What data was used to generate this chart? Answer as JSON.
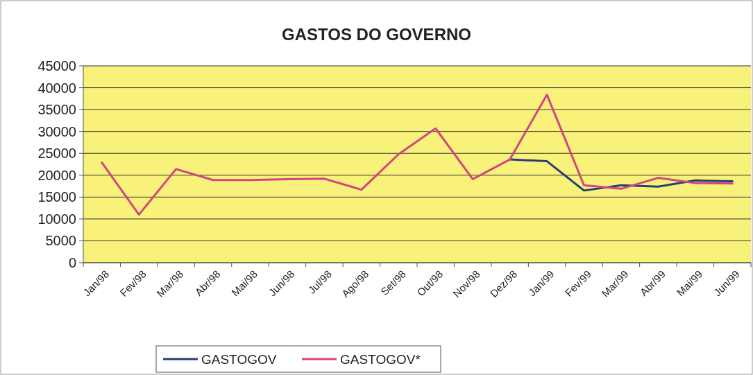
{
  "chart_data": {
    "type": "line",
    "title": "GASTOS DO GOVERNO",
    "categories": [
      "Jan/98",
      "Fev/98",
      "Mar/98",
      "Abr/98",
      "Mai/98",
      "Jun/98",
      "Jul/98",
      "Ago/98",
      "Set/98",
      "Out/98",
      "Nov/98",
      "Dez/98",
      "Jan/99",
      "Fev/99",
      "Mar/99",
      "Abr/99",
      "Mai/99",
      "Jun/99"
    ],
    "series": [
      {
        "name": "GASTOGOV",
        "color": "#283c78",
        "values": [
          null,
          null,
          null,
          null,
          null,
          null,
          null,
          null,
          null,
          null,
          null,
          23600,
          23200,
          16500,
          17700,
          17400,
          18800,
          18600
        ]
      },
      {
        "name": "GASTOGOV*",
        "color": "#d2467f",
        "values": [
          22900,
          11000,
          21400,
          18900,
          18900,
          19100,
          19200,
          16700,
          24800,
          30700,
          19100,
          23600,
          38400,
          17700,
          16900,
          19400,
          18200,
          18100
        ]
      }
    ],
    "ylim": [
      0,
      45000
    ],
    "yticks": [
      0,
      5000,
      10000,
      15000,
      20000,
      25000,
      30000,
      35000,
      40000,
      45000
    ],
    "grid": "y",
    "legend": "bottom",
    "marker": "none",
    "line_style": "solid"
  }
}
